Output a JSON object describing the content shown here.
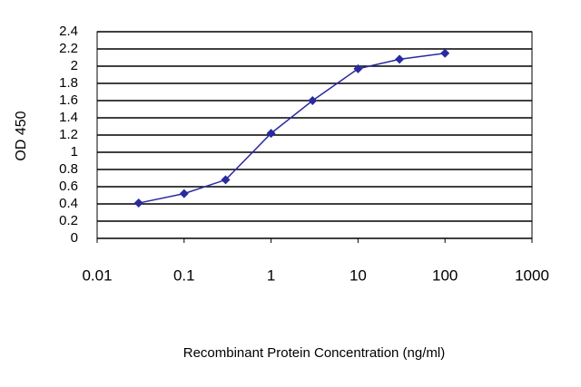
{
  "chart_data": {
    "type": "line",
    "x_label": "Recombinant Protein Concentration (ng/ml)",
    "y_label": "OD 450",
    "x": [
      0.03,
      0.1,
      0.3,
      1,
      3,
      10,
      30,
      100
    ],
    "series": [
      {
        "color": "#2a2aa0",
        "values": [
          0.41,
          0.52,
          0.68,
          1.22,
          1.6,
          1.97,
          2.08,
          2.15
        ]
      }
    ],
    "xlim": [
      0.01,
      1000
    ],
    "xticks": [
      0.01,
      0.1,
      1,
      10,
      100,
      1000
    ],
    "x_log": true,
    "ylim": [
      0,
      2.4
    ],
    "yticks": [
      0,
      0.2,
      0.4,
      0.6,
      0.8,
      1,
      1.2,
      1.4,
      1.6,
      1.8,
      2,
      2.2,
      2.4
    ],
    "grid": true
  }
}
